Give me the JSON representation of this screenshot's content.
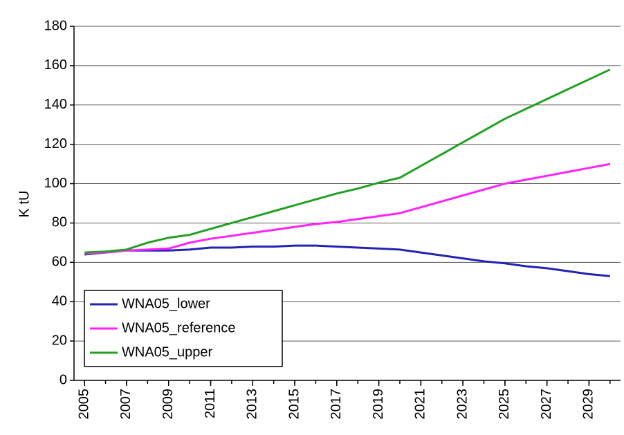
{
  "chart_data": {
    "type": "line",
    "y_label": "K tU",
    "x": [
      2005,
      2006,
      2007,
      2008,
      2009,
      2010,
      2011,
      2012,
      2013,
      2014,
      2015,
      2016,
      2017,
      2018,
      2019,
      2020,
      2021,
      2022,
      2023,
      2024,
      2025,
      2026,
      2027,
      2028,
      2029,
      2030
    ],
    "series": [
      {
        "name": "WNA05_lower",
        "color": "#2323b4",
        "values": [
          64,
          65,
          66,
          66,
          66,
          66.5,
          67.5,
          67.5,
          68,
          68,
          68.5,
          68.5,
          68,
          67.5,
          67,
          66.5,
          65,
          63.5,
          62,
          60.5,
          59.5,
          58,
          57,
          55.5,
          54,
          53
        ]
      },
      {
        "name": "WNA05_reference",
        "color": "#ff22ff",
        "values": [
          64.5,
          65,
          66,
          66.5,
          67,
          70,
          72,
          73.5,
          75,
          76.5,
          78,
          79.5,
          80.5,
          82,
          83.5,
          85,
          88,
          91,
          94,
          97,
          100,
          102,
          104,
          106,
          108,
          110
        ]
      },
      {
        "name": "WNA05_upper",
        "color": "#22a022",
        "values": [
          65,
          65.5,
          66.5,
          70,
          72.5,
          74,
          77,
          80,
          83,
          86,
          89,
          92,
          95,
          97.5,
          100.5,
          103,
          109,
          115,
          121,
          127,
          133,
          138,
          143,
          148,
          153,
          158
        ]
      }
    ],
    "xlim": [
      2004.5,
      2030.5
    ],
    "xticks": [
      2005,
      2007,
      2009,
      2011,
      2013,
      2015,
      2017,
      2019,
      2021,
      2023,
      2025,
      2027,
      2029
    ],
    "ylim": [
      0,
      180
    ],
    "yticks": [
      0,
      20,
      40,
      60,
      80,
      100,
      120,
      140,
      160,
      180
    ],
    "grid": true,
    "legend": "lower-left"
  }
}
